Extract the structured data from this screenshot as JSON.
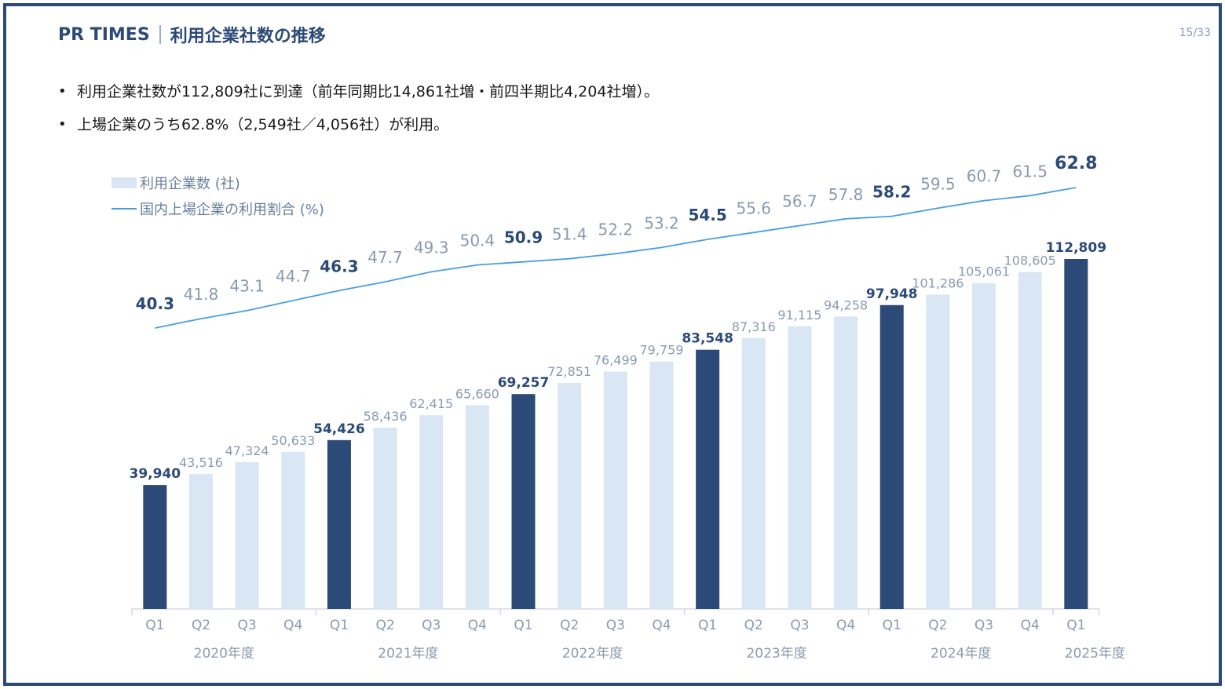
{
  "header": {
    "brand": "PR TIMES",
    "title": "利用企業社数の推移",
    "page_number": "15/33"
  },
  "bullets": [
    "利用企業社数が112,809社に到達（前年同期比14,861社増・前四半期比4,204社増）。",
    "上場企業のうち62.8%（2,549社／4,056社）が利用。"
  ],
  "colors": {
    "frame": "#2b4a78",
    "bar_highlight": "#2b4a78",
    "bar_normal": "#d9e6f4",
    "line": "#4a9ee0",
    "label_highlight": "#2b4a78",
    "label_normal": "#8a9ab0"
  },
  "chart_data": {
    "type": "bar+line",
    "categories": [
      "Q1",
      "Q2",
      "Q3",
      "Q4",
      "Q1",
      "Q2",
      "Q3",
      "Q4",
      "Q1",
      "Q2",
      "Q3",
      "Q4",
      "Q1",
      "Q2",
      "Q3",
      "Q4",
      "Q1",
      "Q2",
      "Q3",
      "Q4",
      "Q1"
    ],
    "years": [
      {
        "label": "2020年度",
        "quarters": 4
      },
      {
        "label": "2021年度",
        "quarters": 4
      },
      {
        "label": "2022年度",
        "quarters": 4
      },
      {
        "label": "2023年度",
        "quarters": 4
      },
      {
        "label": "2024年度",
        "quarters": 4
      },
      {
        "label": "2025年度",
        "quarters": 1
      }
    ],
    "highlight_indices": [
      0,
      4,
      8,
      12,
      16,
      20
    ],
    "series": [
      {
        "name": "利用企業数 (社)",
        "type": "bar",
        "values": [
          39940,
          43516,
          47324,
          50633,
          54426,
          58436,
          62415,
          65660,
          69257,
          72851,
          76499,
          79759,
          83548,
          87316,
          91115,
          94258,
          97948,
          101286,
          105061,
          108605,
          112809
        ],
        "labels": [
          "39,940",
          "43,516",
          "47,324",
          "50,633",
          "54,426",
          "58,436",
          "62,415",
          "65,660",
          "69,257",
          "72,851",
          "76,499",
          "79,759",
          "83,548",
          "87,316",
          "91,115",
          "94,258",
          "97,948",
          "101,286",
          "105,061",
          "108,605",
          "112,809"
        ]
      },
      {
        "name": "国内上場企業の利用割合 (%)",
        "type": "line",
        "values": [
          40.3,
          41.8,
          43.1,
          44.7,
          46.3,
          47.7,
          49.3,
          50.4,
          50.9,
          51.4,
          52.2,
          53.2,
          54.5,
          55.6,
          56.7,
          57.8,
          58.2,
          59.5,
          60.7,
          61.5,
          62.8
        ],
        "labels": [
          "40.3",
          "41.8",
          "43.1",
          "44.7",
          "46.3",
          "47.7",
          "49.3",
          "50.4",
          "50.9",
          "51.4",
          "52.2",
          "53.2",
          "54.5",
          "55.6",
          "56.7",
          "57.8",
          "58.2",
          "59.5",
          "60.7",
          "61.5",
          "62.8"
        ]
      }
    ],
    "legend_position": "top-left"
  }
}
